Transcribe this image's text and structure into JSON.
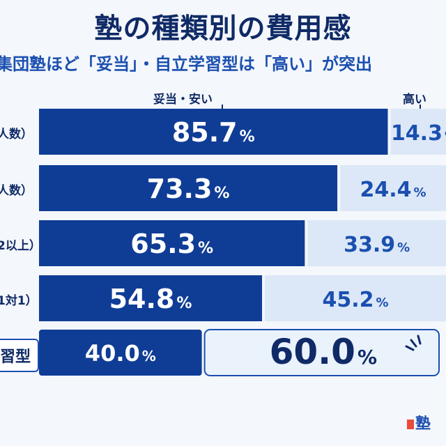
{
  "title": "塾の種類別の費用感",
  "subtitle": "集団塾ほど「妥当」・自立学習型は「高い」が突出",
  "logo_text": "塾",
  "chart_data": {
    "type": "bar",
    "stacked": true,
    "orientation": "horizontal",
    "legend": [
      "妥当・安い",
      "高い"
    ],
    "legend_placement": "top",
    "categories": [
      "人数）",
      "人数）",
      "2以上）",
      "1対1）",
      "習型"
    ],
    "series": [
      {
        "name": "妥当・安い",
        "values": [
          85.7,
          73.3,
          65.3,
          54.8,
          40.0
        ]
      },
      {
        "name": "高い",
        "values": [
          14.3,
          24.4,
          33.9,
          45.2,
          60.0
        ]
      }
    ],
    "labels_a": [
      "85.7",
      "73.3",
      "65.3",
      "54.8",
      "40.0"
    ],
    "labels_b": [
      "14.3",
      "24.4",
      "33.9",
      "45.2",
      "60.0"
    ],
    "unit": "%",
    "xlim": [
      0,
      100
    ],
    "colors": {
      "a": "#0f3d96",
      "b": "#dce8f7",
      "b_highlight": "#eaf2fc",
      "text_b": "#1b4fb0"
    }
  }
}
